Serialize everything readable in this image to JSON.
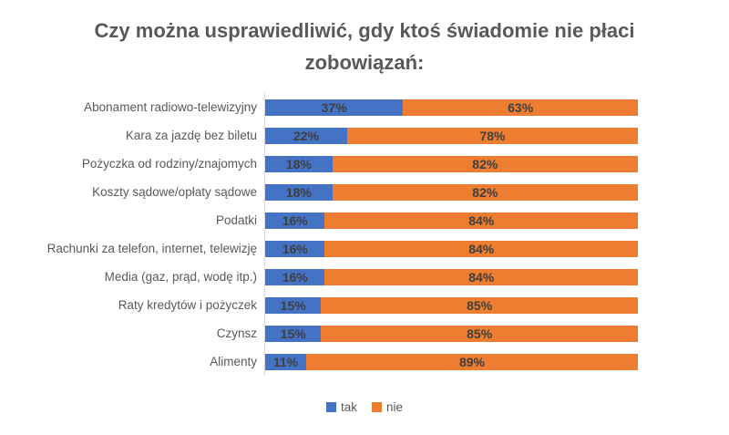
{
  "chart_data": {
    "type": "bar",
    "orientation": "horizontal",
    "stacked": true,
    "title": "Czy można usprawiedliwić, gdy ktoś świadomie nie płaci zobowiązań:",
    "categories": [
      "Abonament radiowo-telewizyjny",
      "Kara za jazdę bez biletu",
      "Pożyczka od rodziny/znajomych",
      "Koszty sądowe/opłaty sądowe",
      "Podatki",
      "Rachunki za telefon, internet, telewizję",
      "Media (gaz, prąd, wodę itp.)",
      "Raty kredytów i pożyczek",
      "Czynsz",
      "Alimenty"
    ],
    "series": [
      {
        "name": "tak",
        "color": "#4472C4",
        "values": [
          37,
          22,
          18,
          18,
          16,
          16,
          16,
          15,
          15,
          11
        ]
      },
      {
        "name": "nie",
        "color": "#ED7D31",
        "values": [
          63,
          78,
          82,
          82,
          84,
          84,
          84,
          85,
          85,
          89
        ]
      }
    ],
    "value_suffix": "%",
    "xlim": [
      0,
      100
    ],
    "data_labels": "inside-center",
    "legend_position": "bottom",
    "grid": false
  },
  "colors": {
    "title": "#595959",
    "category_label": "#595959",
    "data_label": "#3F3F3F",
    "axis_line": "#D9D9D9",
    "background": "#FFFFFF"
  }
}
